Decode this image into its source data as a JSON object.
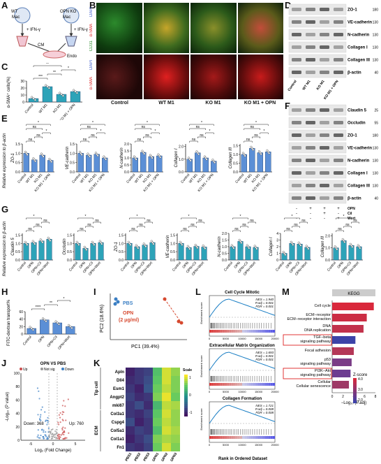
{
  "panel_labels": [
    "A",
    "B",
    "C",
    "D",
    "E",
    "F",
    "G",
    "H",
    "I",
    "J",
    "K",
    "L",
    "M"
  ],
  "panelA": {
    "wt": "WT",
    "mac": "Mac",
    "ko": "OPN KO",
    "ifn": "+ IFN-γ",
    "cm": "CM",
    "endo": "Endo"
  },
  "panelB": {
    "stain_top_cd31": "CD31",
    "stain_top_sma": "α-SMA",
    "stain_top_dapi": "DAPI",
    "stain_bot_sma": "α-SMA",
    "stain_bot_dapi": "DAPI",
    "columns": [
      "Control",
      "WT M1",
      "KO M1",
      "KO M1 + OPN"
    ]
  },
  "panelD": {
    "bands": [
      {
        "label": "ZO-1",
        "mw": "180"
      },
      {
        "label": "VE-cadherin",
        "mw": "130"
      },
      {
        "label": "N-cadherin",
        "mw": "130"
      },
      {
        "label": "Collagen I",
        "mw": "130"
      },
      {
        "label": "Collagen III",
        "mw": "130"
      },
      {
        "label": "β-actin",
        "mw": "40"
      }
    ],
    "lanes": [
      "Control",
      "WT M1",
      "KO M1",
      "KO M1 + OPN"
    ]
  },
  "panelF": {
    "bands": [
      {
        "label": "Claudin 5",
        "mw": "25"
      },
      {
        "label": "Occludin",
        "mw": "55"
      },
      {
        "label": "ZO-1",
        "mw": "180"
      },
      {
        "label": "VE-cadherin",
        "mw": "130"
      },
      {
        "label": "N-cadherin",
        "mw": "130"
      },
      {
        "label": "Collagen I",
        "mw": "130"
      },
      {
        "label": "Collagen III",
        "mw": "130"
      },
      {
        "label": "β-actin",
        "mw": "40"
      }
    ],
    "treat": [
      {
        "name": "OPN",
        "marks": [
          "-",
          "+",
          "+",
          "+"
        ]
      },
      {
        "name": "Cil",
        "marks": [
          "-",
          "-",
          "+",
          "-"
        ]
      },
      {
        "name": "Wort",
        "marks": [
          "-",
          "-",
          "-",
          "+"
        ]
      }
    ]
  },
  "panelC": {
    "ylabel": "α-SMA⁺ cells(%)",
    "yticks": [
      "0",
      "10",
      "20",
      "30"
    ],
    "categories": [
      "Control",
      "WT M1",
      "KO M1",
      "KO M1 + OPN"
    ],
    "values": [
      5,
      22,
      11,
      15
    ],
    "sig": [
      "***",
      "**",
      "*",
      "**"
    ]
  },
  "panelE": {
    "ylabel": "Relative expression to β-actin",
    "categories": [
      "Control",
      "WT M1",
      "KO M1",
      "KO M1 + OPN"
    ],
    "plots": [
      {
        "name": "ZO-1",
        "values": [
          1.0,
          0.65,
          0.9,
          0.62
        ],
        "yticks": [
          "0.0",
          "0.5",
          "1.0",
          "1.5"
        ],
        "ymax": 1.5
      },
      {
        "name": "VE-cadherin",
        "values": [
          1.0,
          0.9,
          0.95,
          0.75
        ],
        "yticks": [
          "0.0",
          "0.5",
          "1.0",
          "1.5"
        ],
        "ymax": 1.5
      },
      {
        "name": "N-cadherin",
        "values": [
          1.0,
          1.4,
          1.1,
          1.15
        ],
        "yticks": [
          "0.0",
          "0.5",
          "1.0",
          "1.5",
          "2.0"
        ],
        "ymax": 2.0
      },
      {
        "name": "Collagen I",
        "values": [
          1.0,
          1.5,
          1.1,
          0.85
        ],
        "yticks": [
          "0.0",
          "1.0",
          "2.0"
        ],
        "ymax": 2.2
      },
      {
        "name": "Collagen III",
        "values": [
          1.0,
          1.35,
          1.1,
          1.15
        ],
        "yticks": [
          "0.0",
          "0.5",
          "1.0",
          "1.5"
        ],
        "ymax": 1.6
      }
    ]
  },
  "panelG": {
    "ylabel": "Relative expression to β-actin",
    "categories": [
      "Control",
      "OPN",
      "OPN+Cil",
      "OPN+Wort"
    ],
    "plots": [
      {
        "name": "Claudin 5",
        "values": [
          1.0,
          1.05,
          1.15,
          1.25
        ],
        "yticks": [
          "0.0",
          "0.5",
          "1.0",
          "1.5"
        ],
        "ymax": 1.6
      },
      {
        "name": "Occludin",
        "values": [
          1.0,
          0.7,
          1.0,
          1.05
        ],
        "yticks": [
          "0.0",
          "0.5",
          "1.0",
          "1.5"
        ],
        "ymax": 1.6
      },
      {
        "name": "ZO-1",
        "values": [
          1.0,
          0.8,
          0.9,
          1.05
        ],
        "yticks": [
          "0.0",
          "0.5",
          "1.0",
          "1.5"
        ],
        "ymax": 1.6
      },
      {
        "name": "VE-cadherin",
        "values": [
          1.0,
          0.75,
          0.82,
          0.78
        ],
        "yticks": [
          "0.0",
          "0.5",
          "1.0",
          "1.5"
        ],
        "ymax": 1.6
      },
      {
        "name": "N-cadherin",
        "values": [
          1.0,
          1.4,
          1.0,
          0.95
        ],
        "yticks": [
          "0.0",
          "0.5",
          "1.0",
          "1.5",
          "2.0"
        ],
        "ymax": 2.0
      },
      {
        "name": "Collagen I",
        "values": [
          1.0,
          2.5,
          2.4,
          1.9
        ],
        "yticks": [
          "0",
          "1",
          "2",
          "3",
          "4"
        ],
        "ymax": 4
      },
      {
        "name": "Collagen III",
        "values": [
          1.0,
          1.6,
          1.2,
          1.1
        ],
        "yticks": [
          "0.0",
          "1.0",
          "2.0"
        ],
        "ymax": 2.2
      }
    ]
  },
  "panelH": {
    "ylabel": "FITC-dextran transport%",
    "yticks": [
      "0",
      "20",
      "40",
      "60"
    ],
    "categories": [
      "Control",
      "OPN",
      "OPN+Cil",
      "OPN+Wort"
    ],
    "values": [
      15,
      38,
      30,
      20
    ],
    "sig": [
      "****",
      "**",
      "*"
    ]
  },
  "panelI": {
    "xlabel": "PC1 (39.4%)",
    "ylabel": "PC2 (18.6%)",
    "legend_pbs": "PBS",
    "legend_opn": "OPN",
    "legend_opn_conc": "(2 μg/ml)"
  },
  "panelJ": {
    "title": "OPN VS PBS",
    "legend": [
      "Up",
      "Not sig",
      "Down"
    ],
    "xlabel": "Log₂ (Fold Change)",
    "ylabel": "-Log₁₀ (P value)",
    "down_label": "Down: 368",
    "up_label": "Up: 760",
    "xticks": [
      "-5",
      "0",
      "5"
    ],
    "yticks": [
      "0",
      "20",
      "40",
      "60",
      "80",
      "100"
    ]
  },
  "panelK": {
    "rows": [
      "Apln",
      "Dll4",
      "Esm1",
      "Angpt2",
      "mki67",
      "Col3a1",
      "Cspg4",
      "Col5a1",
      "Col1a1",
      "Fn1"
    ],
    "cols": [
      "PBS1",
      "PBS2",
      "PBS3",
      "OPN1",
      "OPN2",
      "OPN3"
    ],
    "group_tip": "Tip cell",
    "group_ecm": "ECM",
    "scale_label": "Scale",
    "scale_ticks": [
      "1",
      "0",
      "-1"
    ],
    "values": [
      [
        -1.2,
        -1.0,
        -0.9,
        0.6,
        1.3,
        1.0
      ],
      [
        -1.1,
        -1.0,
        -0.8,
        0.7,
        1.3,
        0.9
      ],
      [
        -1.0,
        -1.2,
        -0.7,
        0.8,
        1.2,
        0.9
      ],
      [
        -0.9,
        -1.1,
        -1.0,
        0.9,
        1.4,
        0.8
      ],
      [
        -1.0,
        -0.8,
        -1.1,
        0.5,
        1.2,
        1.1
      ],
      [
        -1.0,
        -1.1,
        -0.9,
        0.7,
        1.3,
        1.0
      ],
      [
        -0.8,
        -1.2,
        -1.0,
        0.8,
        1.2,
        1.0
      ],
      [
        -1.1,
        -0.9,
        -1.0,
        0.6,
        1.3,
        1.1
      ],
      [
        -1.2,
        -1.0,
        -0.8,
        0.9,
        1.1,
        1.0
      ],
      [
        -1.0,
        -1.1,
        -0.9,
        0.8,
        1.3,
        0.9
      ]
    ]
  },
  "panelL": {
    "xlabel": "Rank in Ordered Dataset",
    "yaxis": "Enrichment score",
    "xticks": [
      "0",
      "5000",
      "10000",
      "15000",
      "20000"
    ],
    "plots": [
      {
        "title": "Cell Cycle Mitotic",
        "stats": [
          "NES = 1.940",
          "P.adj = 0.001",
          "FDR = 0.001"
        ]
      },
      {
        "title": "Extracellular Matrix Organization",
        "stats": [
          "NES = 1.693",
          "P.adj = 0.001",
          "FDR = 0.001"
        ]
      },
      {
        "title": "Collagen Formation",
        "stats": [
          "NES = 1.721",
          "P.adj = 0.008",
          "FDR = 0.008"
        ]
      }
    ]
  },
  "panelM": {
    "header": "KEGG",
    "xlabel": "−Log₁₀ (P.adj)",
    "xticks": [
      "0",
      "2",
      "4",
      "6",
      "8"
    ],
    "zscore_label": "Z-score",
    "zscore_ticks": [
      "4.0",
      "3.0",
      "2.0"
    ],
    "terms": [
      "Cell cycle",
      "ECM−receptor interaction",
      "DNA replication",
      "TGF−beta signaling pathway",
      "Focal adhesion",
      "p53 signaling pathway",
      "PI3K−Akt signaling pathway",
      "Cellular senescence"
    ],
    "values": [
      7.7,
      6.4,
      5.8,
      4.3,
      4.0,
      3.6,
      3.4,
      3.1
    ],
    "colors": [
      "#d9283b",
      "#cc2d44",
      "#c2324c",
      "#3c43a8",
      "#b43757",
      "#7a3c86",
      "#6c3c90",
      "#9e3a66"
    ]
  }
}
